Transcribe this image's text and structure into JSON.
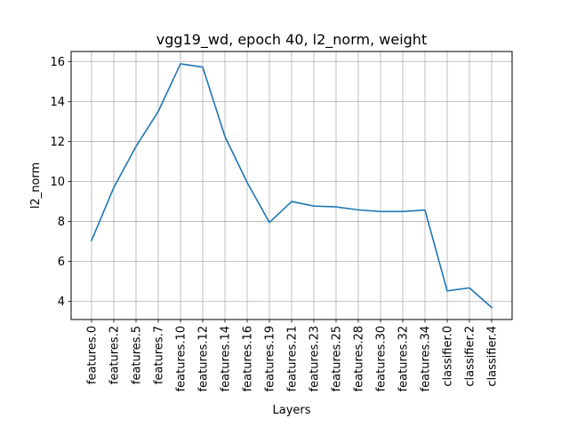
{
  "chart_data": {
    "type": "line",
    "title": "vgg19_wd, epoch 40, l2_norm, weight",
    "xlabel": "Layers",
    "ylabel": "l2_norm",
    "categories": [
      "features.0",
      "features.2",
      "features.5",
      "features.7",
      "features.10",
      "features.12",
      "features.14",
      "features.16",
      "features.19",
      "features.21",
      "features.23",
      "features.25",
      "features.28",
      "features.30",
      "features.32",
      "features.34",
      "classifier.0",
      "classifier.2",
      "classifier.4"
    ],
    "series": [
      {
        "values": [
          7.05,
          9.7,
          11.75,
          13.5,
          15.88,
          15.72,
          12.25,
          9.95,
          7.95,
          9.0,
          8.77,
          8.73,
          8.58,
          8.5,
          8.5,
          8.57,
          4.53,
          4.68,
          3.7
        ],
        "color": "#1f77b4"
      }
    ],
    "ylim": [
      3.1,
      16.5
    ],
    "yticks": [
      4,
      6,
      8,
      10,
      12,
      14,
      16
    ],
    "grid": true
  }
}
